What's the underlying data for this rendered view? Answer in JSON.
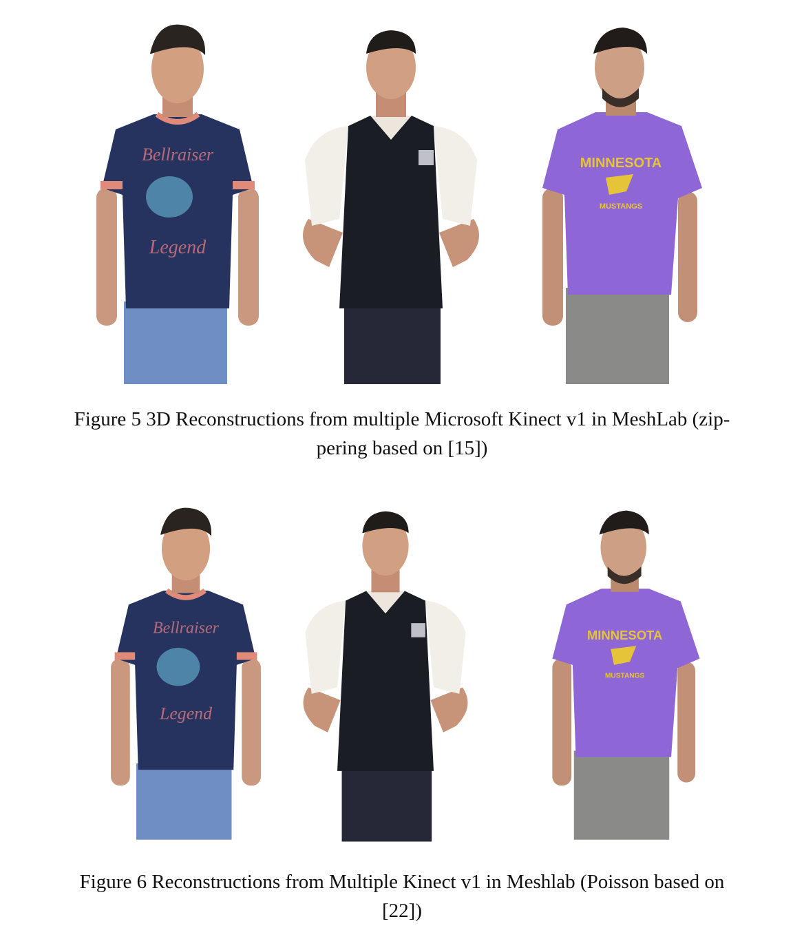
{
  "figures": [
    {
      "label": "Figure 5",
      "caption_line1": "3D Reconstructions from multiple Microsoft Kinect v1 in MeshLab (zip-",
      "caption_line2": "pering based on [15])",
      "subjects": [
        {
          "shirt_color": "#27335f",
          "pants_color": "#6f8fc4",
          "trim_color": "#e08a7a",
          "shirt_text_top": "Bellraiser",
          "shirt_text_bottom": "Legend"
        },
        {
          "shirt_color": "#1b1d24",
          "pants_color": "#262838",
          "trim_color": "#f2eee8",
          "shirt_text_top": "",
          "shirt_text_bottom": ""
        },
        {
          "shirt_color": "#8f66d6",
          "pants_color": "#8a8a88",
          "trim_color": "#8f66d6",
          "shirt_text_top": "MINNESOTA",
          "shirt_text_bottom": "MUSTANGS"
        }
      ]
    },
    {
      "label": "Figure 6",
      "caption_line1": "Reconstructions from Multiple Kinect v1 in Meshlab (Poisson based on",
      "caption_line2": "[22])",
      "subjects": [
        {
          "shirt_color": "#27335f",
          "pants_color": "#6f8fc4",
          "trim_color": "#e08a7a",
          "shirt_text_top": "Bellraiser",
          "shirt_text_bottom": "Legend"
        },
        {
          "shirt_color": "#1b1d24",
          "pants_color": "#262838",
          "trim_color": "#f2eee8",
          "shirt_text_top": "",
          "shirt_text_bottom": ""
        },
        {
          "shirt_color": "#8f66d6",
          "pants_color": "#8a8a88",
          "trim_color": "#8f66d6",
          "shirt_text_top": "MINNESOTA",
          "shirt_text_bottom": "MUSTANGS"
        }
      ]
    }
  ]
}
